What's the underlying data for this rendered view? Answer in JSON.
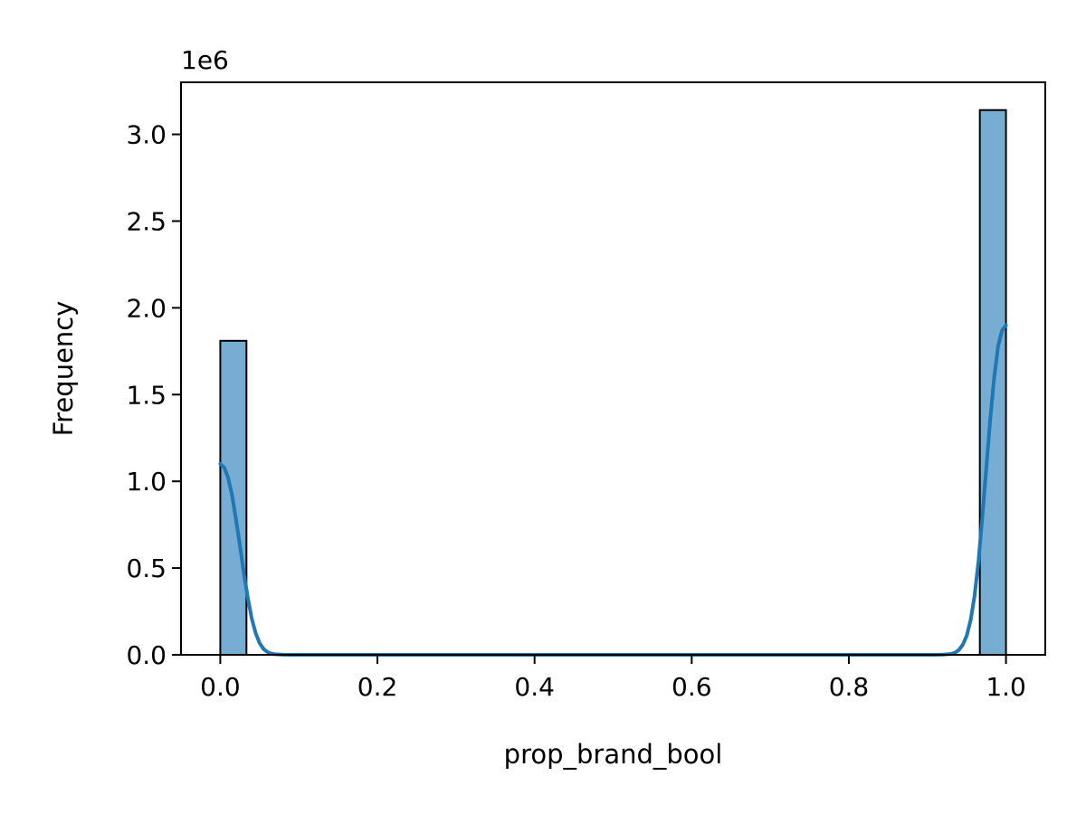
{
  "chart_data": {
    "type": "bar",
    "subtype": "histogram-with-kde",
    "title": "",
    "xlabel": "prop_brand_bool",
    "ylabel": "Frequency",
    "y_offset_label": "1e6",
    "xlim": [
      -0.05,
      1.05
    ],
    "ylim": [
      0,
      3.3
    ],
    "y_scale_multiplier": 1000000,
    "x_ticks": [
      0.0,
      0.2,
      0.4,
      0.6,
      0.8,
      1.0
    ],
    "x_tick_labels": [
      "0.0",
      "0.2",
      "0.4",
      "0.6",
      "0.8",
      "1.0"
    ],
    "y_ticks": [
      0.0,
      0.5,
      1.0,
      1.5,
      2.0,
      2.5,
      3.0
    ],
    "y_tick_labels": [
      "0.0",
      "0.5",
      "1.0",
      "1.5",
      "2.0",
      "2.5",
      "3.0"
    ],
    "bars": [
      {
        "x0": 0.0,
        "x1": 0.0333,
        "value": 1.81
      },
      {
        "x0": 0.9667,
        "x1": 1.0,
        "value": 3.14
      }
    ],
    "kde": {
      "x": [
        0.0,
        0.005,
        0.01,
        0.015,
        0.02,
        0.025,
        0.03,
        0.035,
        0.04,
        0.045,
        0.05,
        0.055,
        0.06,
        0.065,
        0.07,
        0.08,
        0.09,
        0.1,
        0.2,
        0.4,
        0.6,
        0.8,
        0.9,
        0.91,
        0.92,
        0.93,
        0.935,
        0.94,
        0.945,
        0.95,
        0.955,
        0.96,
        0.965,
        0.97,
        0.975,
        0.98,
        0.985,
        0.99,
        0.995,
        1.0
      ],
      "y": [
        1.1,
        1.08,
        1.02,
        0.92,
        0.78,
        0.63,
        0.47,
        0.33,
        0.21,
        0.125,
        0.068,
        0.034,
        0.016,
        0.007,
        0.003,
        0.0005,
        0.0001,
        0.0,
        0.0,
        0.0,
        0.0,
        0.0,
        0.0,
        0.0002,
        0.001,
        0.005,
        0.012,
        0.028,
        0.058,
        0.11,
        0.2,
        0.34,
        0.54,
        0.8,
        1.08,
        1.36,
        1.6,
        1.78,
        1.87,
        1.9
      ]
    },
    "colors": {
      "bar_fill": "#77acd3",
      "bar_edge": "#000000",
      "kde_line": "#1f77b4",
      "axes": "#000000"
    },
    "grid": false,
    "legend": "none"
  }
}
